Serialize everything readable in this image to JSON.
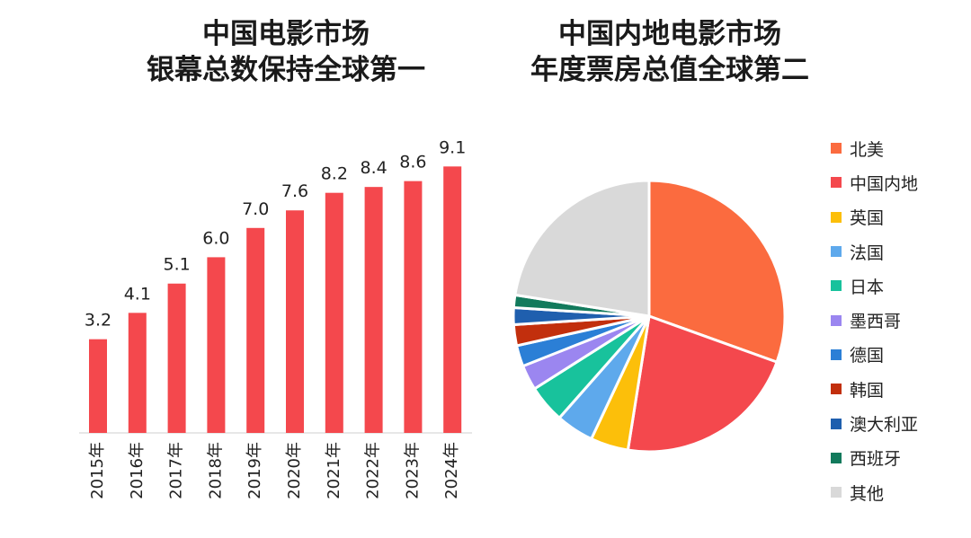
{
  "chart_data": [
    {
      "type": "bar",
      "title_lines": [
        "中国电影市场",
        "银幕总数保持全球第一"
      ],
      "categories": [
        "2015年",
        "2016年",
        "2017年",
        "2018年",
        "2019年",
        "2020年",
        "2021年",
        "2022年",
        "2023年",
        "2024年"
      ],
      "values": [
        3.2,
        4.1,
        5.1,
        6.0,
        7.0,
        7.6,
        8.2,
        8.4,
        8.6,
        9.1
      ],
      "value_labels": [
        "3.2",
        "4.1",
        "5.1",
        "6.0",
        "7.0",
        "7.6",
        "8.2",
        "8.4",
        "8.6",
        "9.1"
      ],
      "bar_color": "#f4484d",
      "grid": false
    },
    {
      "type": "pie",
      "title_lines": [
        "中国内地电影市场",
        "年度票房总值全球第二"
      ],
      "legend_position": "right",
      "slices": [
        {
          "label": "北美",
          "value": 30.5,
          "color": "#fb6b3f"
        },
        {
          "label": "中国内地",
          "value": 22.0,
          "color": "#f4484d"
        },
        {
          "label": "英国",
          "value": 4.5,
          "color": "#fcbf0a"
        },
        {
          "label": "法国",
          "value": 4.5,
          "color": "#5ea9ec"
        },
        {
          "label": "日本",
          "value": 4.5,
          "color": "#18c29c"
        },
        {
          "label": "墨西哥",
          "value": 3.0,
          "color": "#9b86f0"
        },
        {
          "label": "德国",
          "value": 2.5,
          "color": "#2b7fd6"
        },
        {
          "label": "韩国",
          "value": 2.5,
          "color": "#c22f0d"
        },
        {
          "label": "澳大利亚",
          "value": 2.0,
          "color": "#1f5fae"
        },
        {
          "label": "西班牙",
          "value": 1.5,
          "color": "#127a5c"
        },
        {
          "label": "其他",
          "value": 22.5,
          "color": "#d9d9d9"
        }
      ]
    }
  ]
}
